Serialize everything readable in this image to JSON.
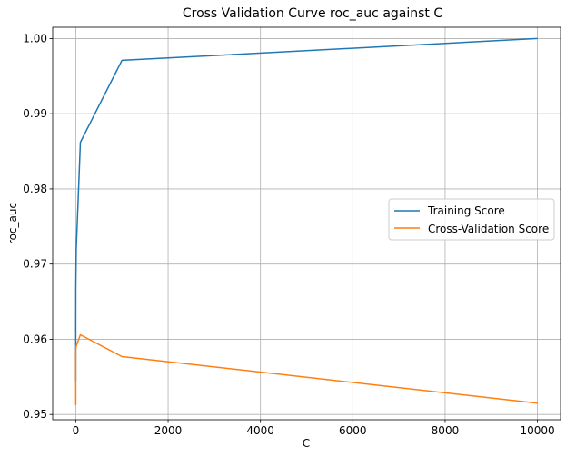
{
  "chart_data": {
    "type": "line",
    "title": "Cross Validation Curve roc_auc against C",
    "xlabel": "C",
    "ylabel": "roc_auc",
    "xlim": [
      -500,
      10500
    ],
    "ylim": [
      0.9493,
      1.0015
    ],
    "xticks": [
      0,
      2000,
      4000,
      6000,
      8000,
      10000
    ],
    "yticks": [
      0.95,
      0.96,
      0.97,
      0.98,
      0.99,
      1.0
    ],
    "ytick_labels": [
      "0.95",
      "0.96",
      "0.97",
      "0.98",
      "0.99",
      "1.00"
    ],
    "grid": true,
    "legend_position": "center-right",
    "x": [
      0.0001,
      0.001,
      0.01,
      0.1,
      1,
      10,
      100,
      1000,
      10000
    ],
    "series": [
      {
        "name": "Training Score",
        "color": "#1f77b4",
        "values": [
          0.9544,
          0.9562,
          0.9592,
          0.9625,
          0.9668,
          0.972,
          0.9862,
          0.9971,
          1.0
        ]
      },
      {
        "name": "Cross-Validation Score",
        "color": "#ff7f0e",
        "values": [
          0.9544,
          0.9513,
          0.9555,
          0.9577,
          0.9586,
          0.9591,
          0.9606,
          0.9577,
          0.9515
        ]
      }
    ]
  }
}
